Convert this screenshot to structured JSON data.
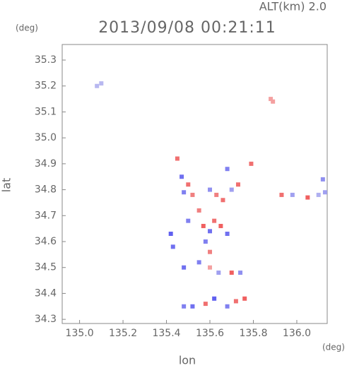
{
  "chart_data": {
    "type": "scatter",
    "title": "2013/09/08 00:21:11",
    "subtitle": "ALT(km) 2.0",
    "x_label": "lon",
    "y_label": "lat",
    "x_unit": "(deg)",
    "y_unit": "(deg)",
    "xlim": [
      134.92,
      136.14
    ],
    "ylim": [
      34.284,
      35.36
    ],
    "xticks": [
      {
        "value": 135,
        "label": "135.0"
      },
      135.2,
      135.4,
      135.6,
      135.8,
      {
        "value": 136,
        "label": "136.0"
      }
    ],
    "yticks": [
      34.3,
      34.4,
      34.5,
      34.6,
      34.7,
      34.8,
      34.9,
      {
        "value": 35,
        "label": "35.0"
      },
      35.1,
      35.2,
      35.3
    ],
    "x": [
      135.08,
      135.1,
      135.88,
      135.89,
      135.45,
      135.47,
      135.5,
      135.48,
      135.52,
      135.6,
      135.63,
      135.66,
      135.68,
      135.7,
      135.73,
      135.79,
      135.93,
      135.98,
      136.05,
      136.1,
      136.13,
      136.12,
      135.42,
      135.5,
      135.55,
      135.57,
      135.6,
      135.62,
      135.65,
      135.68,
      135.58,
      135.6,
      135.55,
      135.6,
      135.48,
      135.64,
      135.7,
      135.74,
      135.43,
      135.52,
      135.58,
      135.62,
      135.68,
      135.72,
      135.76,
      135.48
    ],
    "y": [
      35.2,
      35.21,
      35.15,
      35.14,
      34.92,
      34.85,
      34.82,
      34.79,
      34.78,
      34.8,
      34.78,
      34.76,
      34.88,
      34.8,
      34.82,
      34.9,
      34.78,
      34.78,
      34.77,
      34.78,
      34.79,
      34.84,
      34.63,
      34.68,
      34.72,
      34.66,
      34.64,
      34.68,
      34.66,
      34.63,
      34.6,
      34.56,
      34.52,
      34.5,
      34.5,
      34.48,
      34.48,
      34.48,
      34.58,
      34.35,
      34.36,
      34.38,
      34.35,
      34.37,
      34.38,
      34.35
    ],
    "colors": [
      "#b8b8f0",
      "#b8b8f0",
      "#f4a0a0",
      "#f4a0a0",
      "#f07070",
      "#7070f0",
      "#f07070",
      "#8080f0",
      "#f08080",
      "#9090f0",
      "#f08080",
      "#f07070",
      "#8080f0",
      "#a0a0f0",
      "#f07070",
      "#f07070",
      "#f07070",
      "#a0a0f0",
      "#f06060",
      "#b0b0f0",
      "#a0a0f0",
      "#9090f0",
      "#6060f0",
      "#8080f0",
      "#f08080",
      "#f06060",
      "#7070f0",
      "#f07070",
      "#f06060",
      "#7070f0",
      "#8080f0",
      "#f08080",
      "#8080f0",
      "#f4a0a0",
      "#7070f0",
      "#a0a0f0",
      "#f06060",
      "#9090f0",
      "#7070f0",
      "#7070f0",
      "#f07070",
      "#6060f0",
      "#8080f0",
      "#f07070",
      "#f06060",
      "#8080f0"
    ]
  }
}
